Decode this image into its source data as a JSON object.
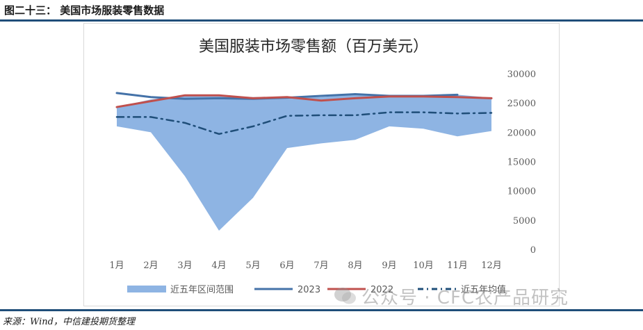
{
  "figure_label": "图二十三：  美国市场服装零售数据",
  "source_note": "来源：Wind，中信建投期货整理",
  "watermark_text": "公众号 · CFC农产品研究",
  "colors": {
    "band": "#8eb4e3",
    "line_2023": "#4472a8",
    "line_2022": "#c0504d",
    "avg": "#1f4e79",
    "rule": "#1f4e79",
    "axis_text": "#595959"
  },
  "chart_data": {
    "type": "area",
    "title": "美国服装市场零售额（百万美元）",
    "categories": [
      "1月",
      "2月",
      "3月",
      "4月",
      "5月",
      "6月",
      "7月",
      "8月",
      "9月",
      "10月",
      "11月",
      "12月"
    ],
    "ylim": [
      0,
      30000
    ],
    "yticks": [
      "0",
      "5000",
      "10000",
      "15000",
      "20000",
      "25000",
      "30000"
    ],
    "y_axis_side": "right",
    "grid": false,
    "legend_position": "bottom",
    "band": {
      "name": "近五年区间范围",
      "low": [
        21000,
        20000,
        12500,
        3200,
        8800,
        17300,
        18100,
        18700,
        21000,
        20600,
        19300,
        20200
      ],
      "high": [
        24300,
        25600,
        26300,
        26300,
        26000,
        26100,
        26000,
        26500,
        26300,
        26200,
        26400,
        25900
      ]
    },
    "series": [
      {
        "name": "2023",
        "values": [
          26700,
          26000,
          25700,
          25800,
          25700,
          25900,
          26200,
          26500,
          26200,
          26200,
          26400,
          null
        ]
      },
      {
        "name": "2022",
        "values": [
          24300,
          25300,
          26300,
          26300,
          25800,
          26000,
          25400,
          25800,
          26100,
          26100,
          26000,
          25800
        ]
      },
      {
        "name": "近五年均值",
        "values": [
          22600,
          22600,
          21600,
          19700,
          21000,
          22800,
          22900,
          22900,
          23400,
          23400,
          23200,
          23300
        ]
      }
    ]
  }
}
